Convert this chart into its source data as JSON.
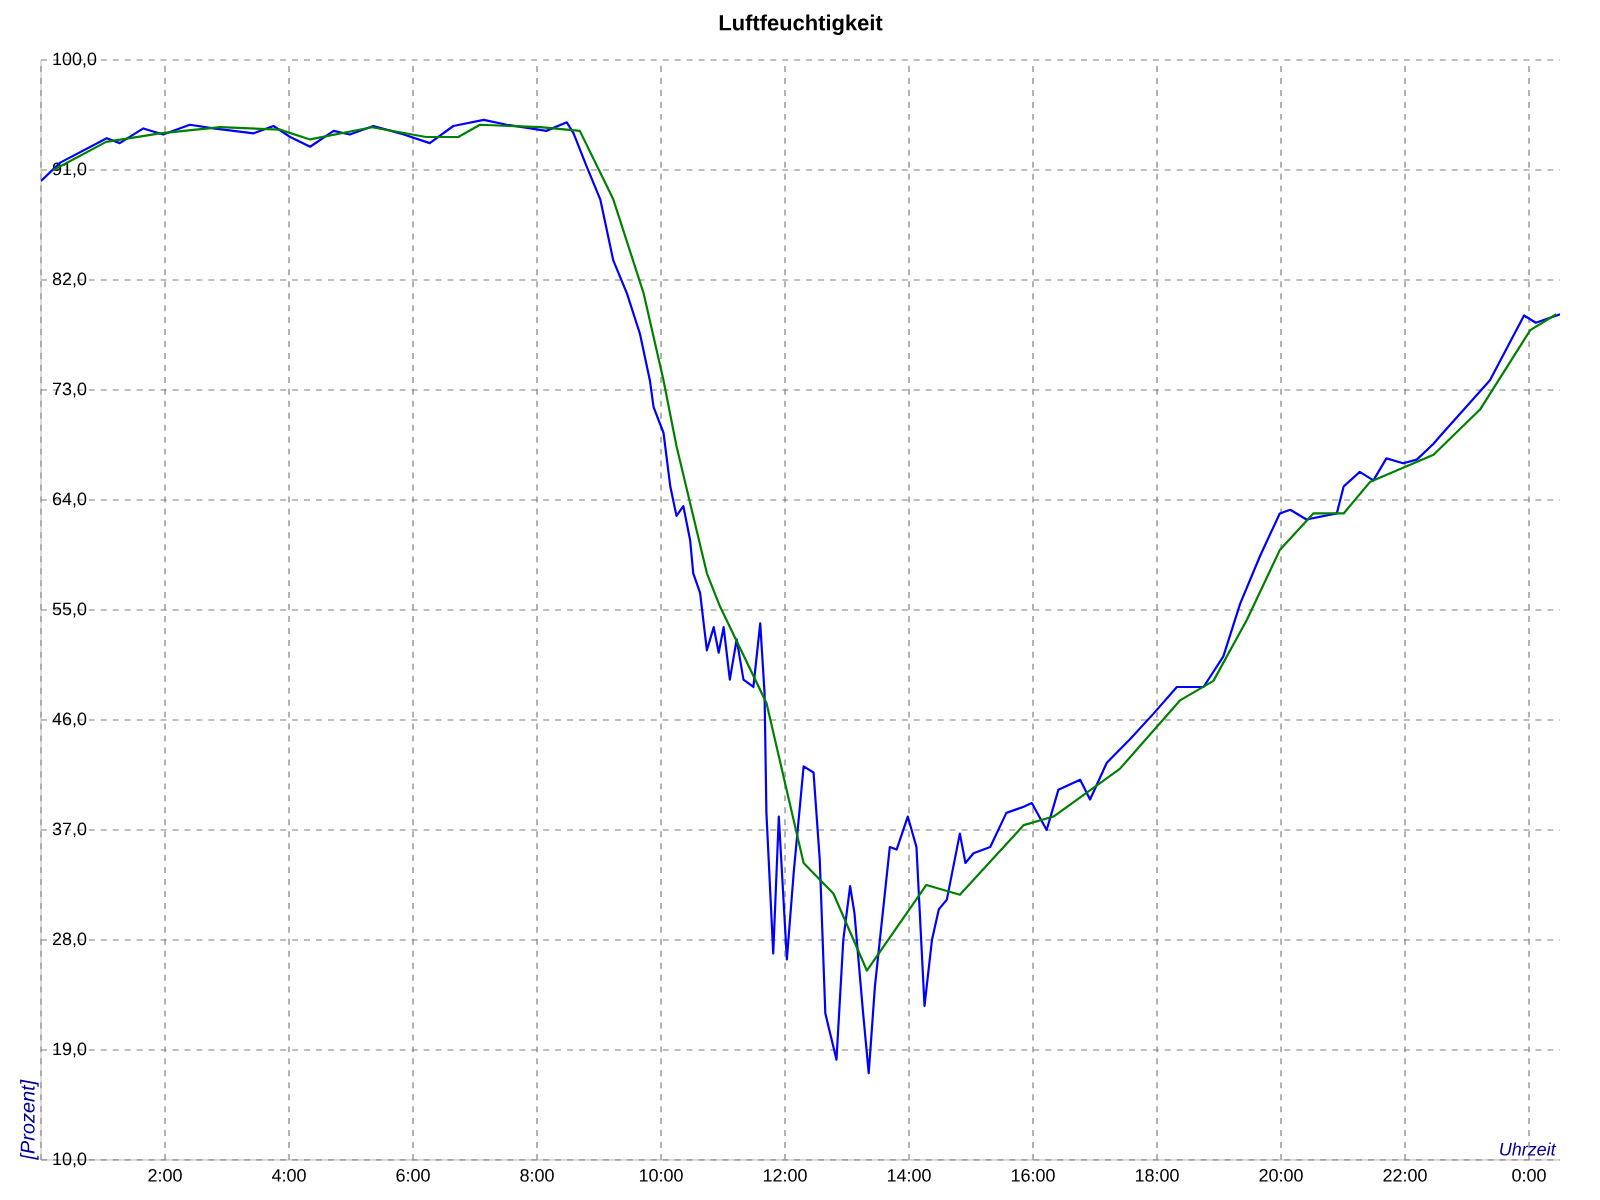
{
  "chart_data": {
    "type": "line",
    "title": "Luftfeuchtigkeit",
    "xlabel": "Uhrzeit",
    "ylabel": "[Prozent]",
    "xlim": [
      0,
      24.5
    ],
    "ylim": [
      10,
      100
    ],
    "grid": true,
    "xticks": [
      {
        "value": 0,
        "label": null
      },
      {
        "value": 2,
        "label": "2:00"
      },
      {
        "value": 4,
        "label": "4:00"
      },
      {
        "value": 6,
        "label": "6:00"
      },
      {
        "value": 8,
        "label": "8:00"
      },
      {
        "value": 10,
        "label": "10:00"
      },
      {
        "value": 12,
        "label": "12:00"
      },
      {
        "value": 14,
        "label": "14:00"
      },
      {
        "value": 16,
        "label": "16:00"
      },
      {
        "value": 18,
        "label": "18:00"
      },
      {
        "value": 20,
        "label": "20:00"
      },
      {
        "value": 22,
        "label": "22:00"
      },
      {
        "value": 24,
        "label": "0:00"
      }
    ],
    "yticks": [
      {
        "value": 10,
        "label": "10,0"
      },
      {
        "value": 19,
        "label": "19,0"
      },
      {
        "value": 28,
        "label": "28,0"
      },
      {
        "value": 37,
        "label": "37,0"
      },
      {
        "value": 46,
        "label": "46,0"
      },
      {
        "value": 55,
        "label": "55,0"
      },
      {
        "value": 64,
        "label": "64,0"
      },
      {
        "value": 73,
        "label": "73,0"
      },
      {
        "value": 82,
        "label": "82,0"
      },
      {
        "value": 91,
        "label": "91,0"
      },
      {
        "value": 100,
        "label": "100,0"
      }
    ],
    "series": [
      {
        "color": "#0000ff",
        "x": [
          0.0,
          0.31,
          1.06,
          1.27,
          1.65,
          1.97,
          2.4,
          2.78,
          3.43,
          3.75,
          4.02,
          4.34,
          4.72,
          4.98,
          5.36,
          5.79,
          6.27,
          6.65,
          7.14,
          7.51,
          8.15,
          8.48,
          8.59,
          8.8,
          9.02,
          9.23,
          9.45,
          9.66,
          9.82,
          9.88,
          10.04,
          10.15,
          10.25,
          10.36,
          10.47,
          10.52,
          10.63,
          10.74,
          10.85,
          10.93,
          11.01,
          11.11,
          11.22,
          11.33,
          11.49,
          11.6,
          11.67,
          11.7,
          11.81,
          11.9,
          12.03,
          12.14,
          12.3,
          12.46,
          12.56,
          12.65,
          12.83,
          12.94,
          13.05,
          13.12,
          13.26,
          13.35,
          13.45,
          13.69,
          13.8,
          13.98,
          14.12,
          14.25,
          14.37,
          14.48,
          14.61,
          14.82,
          14.91,
          15.04,
          15.31,
          15.57,
          15.85,
          15.98,
          16.22,
          16.41,
          16.76,
          16.92,
          17.19,
          17.56,
          17.94,
          18.32,
          18.75,
          19.07,
          19.34,
          19.66,
          19.98,
          20.15,
          20.41,
          20.9,
          21.01,
          21.27,
          21.49,
          21.7,
          21.97,
          22.19,
          22.46,
          22.56,
          23.37,
          23.92,
          24.11,
          24.5
        ],
        "values": [
          90.1,
          91.6,
          93.6,
          93.2,
          94.4,
          93.9,
          94.7,
          94.4,
          94.0,
          94.6,
          93.7,
          92.9,
          94.2,
          93.9,
          94.6,
          94.0,
          93.2,
          94.6,
          95.1,
          94.7,
          94.2,
          94.9,
          94.0,
          91.3,
          88.6,
          83.6,
          80.9,
          77.6,
          73.8,
          71.6,
          69.5,
          65.1,
          62.7,
          63.5,
          60.7,
          58.0,
          56.4,
          51.7,
          53.6,
          51.5,
          53.6,
          49.3,
          52.6,
          49.3,
          48.7,
          53.9,
          48.2,
          38.4,
          26.9,
          38.1,
          26.4,
          33.5,
          42.2,
          41.7,
          34.6,
          22.0,
          18.2,
          28.0,
          32.4,
          30.2,
          22.0,
          17.1,
          24.2,
          35.6,
          35.4,
          38.1,
          35.6,
          22.6,
          28.0,
          30.5,
          31.3,
          36.7,
          34.3,
          35.1,
          35.6,
          38.4,
          38.9,
          39.2,
          37.0,
          40.3,
          41.1,
          39.5,
          42.5,
          44.4,
          46.5,
          48.7,
          48.7,
          51.2,
          55.5,
          59.4,
          62.9,
          63.2,
          62.4,
          62.9,
          65.1,
          66.3,
          65.6,
          67.4,
          67.0,
          67.3,
          68.6,
          69.2,
          73.8,
          79.1,
          78.5,
          79.2
        ]
      },
      {
        "color": "#008000",
        "x": [
          0.2,
          1.05,
          1.92,
          2.89,
          3.85,
          4.34,
          5.34,
          6.21,
          6.73,
          7.08,
          8.05,
          8.69,
          9.23,
          9.72,
          10.04,
          10.25,
          10.74,
          10.95,
          11.7,
          12.3,
          12.78,
          13.32,
          14.28,
          14.82,
          15.85,
          16.33,
          17.4,
          18.37,
          18.91,
          19.45,
          19.98,
          20.52,
          21.01,
          21.44,
          22.46,
          23.21,
          24.02,
          24.44
        ],
        "values": [
          91.0,
          93.3,
          94.0,
          94.5,
          94.3,
          93.5,
          94.5,
          93.7,
          93.7,
          94.7,
          94.5,
          94.2,
          88.6,
          80.9,
          73.8,
          68.4,
          58.0,
          55.3,
          47.4,
          34.3,
          31.8,
          25.5,
          32.5,
          31.7,
          37.4,
          38.1,
          42.0,
          47.6,
          49.2,
          54.2,
          59.9,
          62.9,
          62.9,
          65.5,
          67.7,
          71.4,
          77.9,
          79.2
        ]
      }
    ]
  }
}
